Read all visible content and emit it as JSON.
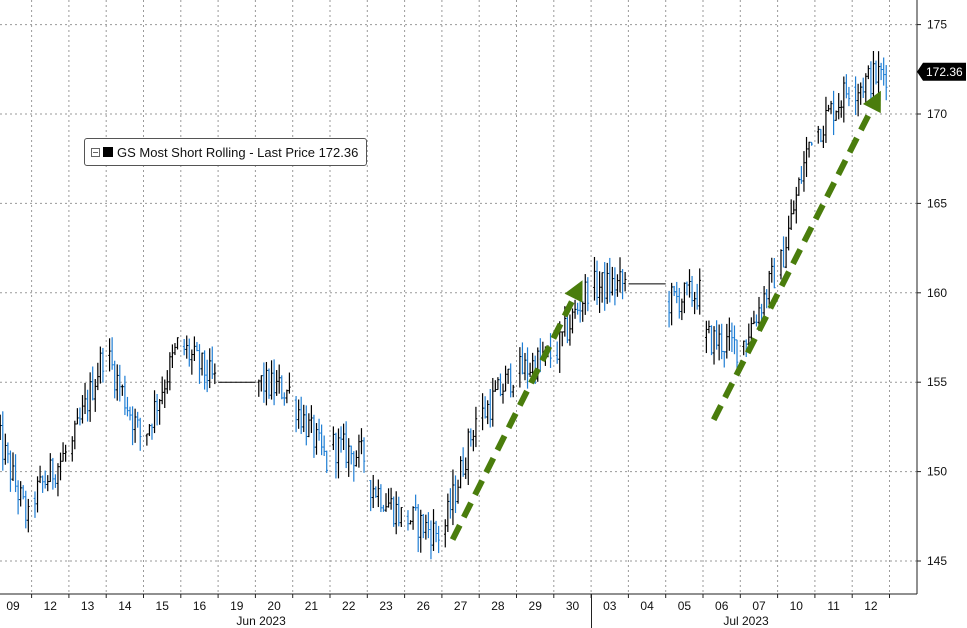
{
  "chart_data": {
    "type": "candlestick",
    "title": "",
    "legend": {
      "label": "GS Most Short Rolling - Last Price 172.36",
      "placement": "top-left",
      "color": "#000000"
    },
    "last_price_label": "172.36",
    "y_axis": {
      "position": "right",
      "ylim": [
        143,
        177
      ],
      "ticks": [
        145,
        150,
        155,
        160,
        165,
        170,
        175
      ]
    },
    "grid": true,
    "colors": {
      "up": "#000000",
      "down": "#1f7ed4",
      "arrow": "#4a7d0c"
    },
    "x_axis": {
      "ticks": [
        "09",
        "12",
        "13",
        "14",
        "15",
        "16",
        "19",
        "20",
        "21",
        "22",
        "23",
        "26",
        "27",
        "28",
        "29",
        "30",
        "03",
        "04",
        "05",
        "06",
        "07",
        "10",
        "11",
        "12"
      ],
      "months": [
        {
          "label": "Jun 2023",
          "tick_index": 7
        },
        {
          "label": "Jul 2023",
          "tick_index": 20
        }
      ],
      "month_separator_after_index": 15
    },
    "sessions": [
      {
        "date": "Jun 09",
        "start": 152.5,
        "end": 147.2
      },
      {
        "date": "Jun 12",
        "start": 148.5,
        "end": 151.0
      },
      {
        "date": "Jun 13",
        "start": 151.0,
        "end": 156.5
      },
      {
        "date": "Jun 14",
        "start": 156.5,
        "end": 152.0
      },
      {
        "date": "Jun 15",
        "start": 152.0,
        "end": 157.0
      },
      {
        "date": "Jun 16",
        "start": 157.0,
        "end": 155.0
      },
      {
        "date": "Jun 19",
        "start": 155.0,
        "end": 155.0
      },
      {
        "date": "Jun 20",
        "start": 155.0,
        "end": 154.5
      },
      {
        "date": "Jun 21",
        "start": 154.0,
        "end": 150.5
      },
      {
        "date": "Jun 22",
        "start": 151.5,
        "end": 150.8
      },
      {
        "date": "Jun 23",
        "start": 149.5,
        "end": 147.5
      },
      {
        "date": "Jun 26",
        "start": 147.5,
        "end": 146.5
      },
      {
        "date": "Jun 27",
        "start": 146.5,
        "end": 153.0
      },
      {
        "date": "Jun 28",
        "start": 153.0,
        "end": 155.5
      },
      {
        "date": "Jun 29",
        "start": 155.5,
        "end": 156.5
      },
      {
        "date": "Jun 30",
        "start": 156.5,
        "end": 160.3
      },
      {
        "date": "Jul 03",
        "start": 160.3,
        "end": 160.5
      },
      {
        "date": "Jul 04",
        "start": 160.5,
        "end": 160.5
      },
      {
        "date": "Jul 05",
        "start": 159.5,
        "end": 160.0
      },
      {
        "date": "Jul 06",
        "start": 157.5,
        "end": 157.0
      },
      {
        "date": "Jul 07",
        "start": 157.0,
        "end": 161.0
      },
      {
        "date": "Jul 10",
        "start": 161.0,
        "end": 169.0
      },
      {
        "date": "Jul 11",
        "start": 169.0,
        "end": 171.5
      },
      {
        "date": "Jul 12",
        "start": 171.5,
        "end": 172.36
      }
    ],
    "annotations": [
      {
        "type": "dashed-arrow",
        "from": {
          "session": "Jun 27",
          "value": 146.2
        },
        "to": {
          "session": "Jun 30",
          "value": 160.7
        }
      },
      {
        "type": "dashed-arrow",
        "from": {
          "session": "Jul 06",
          "value": 152.9
        },
        "to": {
          "session": "Jul 12",
          "value": 171.3
        }
      }
    ]
  }
}
